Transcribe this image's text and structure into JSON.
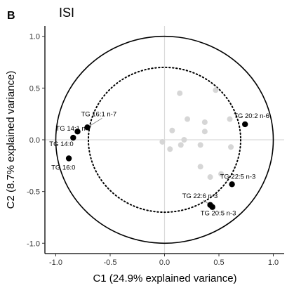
{
  "chart_data": {
    "type": "scatter",
    "panel_label": "B",
    "title": "ISI",
    "xlabel": "C1 (24.9% explained variance)",
    "ylabel": "C2 (8.7% explained variance)",
    "xlim": [
      -1.1,
      1.1
    ],
    "ylim": [
      -1.1,
      1.1
    ],
    "x_ticks": [
      -1.0,
      -0.5,
      0.0,
      0.5,
      1.0
    ],
    "y_ticks": [
      -1.0,
      -0.5,
      0.0,
      0.5,
      1.0
    ],
    "x_tick_labels": [
      "-1.0",
      "-0.5",
      "0.0",
      "0.5",
      "1.0"
    ],
    "y_tick_labels": [
      "-1.0",
      "-0.5",
      "0.0",
      "0.5",
      "1.0"
    ],
    "reference_lines": [
      0,
      0
    ],
    "circles": [
      {
        "radius": 1.0,
        "style": "solid"
      },
      {
        "radius": 0.7,
        "style": "dotted"
      }
    ],
    "highlighted_points": [
      {
        "label": "TG 16:1 n-7",
        "x": -0.71,
        "y": 0.12
      },
      {
        "label": "TG 14:1 n-7",
        "x": -0.8,
        "y": 0.08
      },
      {
        "label": "TG 14:0",
        "x": -0.84,
        "y": 0.02
      },
      {
        "label": "TG 16:0",
        "x": -0.88,
        "y": -0.18
      },
      {
        "label": "TG 20:2 n-6",
        "x": 0.74,
        "y": 0.15
      },
      {
        "label": "TG 22:5 n-3",
        "x": 0.62,
        "y": -0.43
      },
      {
        "label": "TG 22:6 n-3",
        "x": 0.42,
        "y": -0.63
      },
      {
        "label": "TG 20:5 n-3",
        "x": 0.44,
        "y": -0.65
      }
    ],
    "background_points": [
      {
        "x": 0.14,
        "y": 0.45
      },
      {
        "x": 0.47,
        "y": 0.48
      },
      {
        "x": 0.21,
        "y": 0.2
      },
      {
        "x": 0.37,
        "y": 0.17
      },
      {
        "x": 0.37,
        "y": 0.08
      },
      {
        "x": 0.6,
        "y": 0.2
      },
      {
        "x": 0.07,
        "y": 0.09
      },
      {
        "x": 0.18,
        "y": 0.0
      },
      {
        "x": 0.15,
        "y": -0.05
      },
      {
        "x": -0.02,
        "y": -0.02
      },
      {
        "x": 0.05,
        "y": -0.09
      },
      {
        "x": 0.33,
        "y": -0.05
      },
      {
        "x": 0.61,
        "y": -0.07
      },
      {
        "x": 0.33,
        "y": -0.26
      },
      {
        "x": 0.52,
        "y": -0.33
      },
      {
        "x": 0.42,
        "y": -0.36
      }
    ],
    "colors": {
      "highlight": "#000000",
      "background": "#d6d6d6",
      "gridline": "#d9d9d9",
      "circle": "#000000"
    }
  }
}
